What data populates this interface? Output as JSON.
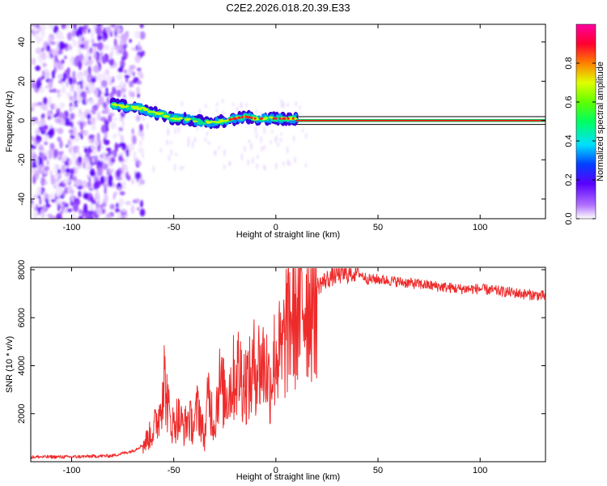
{
  "title": "C2E2.2026.018.20.39.E33",
  "chart_data": [
    {
      "type": "heatmap",
      "name": "spectrogram",
      "xlabel": "Height of straight line (km)",
      "ylabel": "Frequency (Hz)",
      "xlim": [
        -120,
        132
      ],
      "ylim": [
        -50,
        49
      ],
      "xticks": [
        -100,
        -50,
        0,
        50,
        100
      ],
      "yticks": [
        -40,
        -20,
        0,
        20,
        40
      ],
      "noise_region_x": [
        -120,
        -73
      ],
      "signal_ridge": {
        "x": [
          -80,
          -73,
          -65,
          -60,
          -55,
          -50,
          -45,
          -40,
          -35,
          -30,
          -25,
          -20,
          -15,
          -10,
          -5,
          0,
          5,
          10
        ],
        "freq": [
          8,
          7,
          6,
          4,
          3,
          1,
          1,
          0,
          -1,
          -1,
          0,
          1,
          2,
          1,
          1,
          1,
          1,
          1
        ]
      },
      "tone_line": {
        "from_x": 10,
        "to_x": 132,
        "freq": 0,
        "band_hz": [
          -2,
          2
        ]
      },
      "colorbar": {
        "label": "Normalized spectral amplitude",
        "range": [
          0.0,
          1.0
        ],
        "ticks": [
          0.0,
          0.2,
          0.4,
          0.6,
          0.8
        ]
      }
    },
    {
      "type": "line",
      "name": "snr",
      "xlabel": "Height of straight line (km)",
      "ylabel": "SNR (10 * v/v)",
      "xlim": [
        -120,
        132
      ],
      "ylim": [
        0,
        8100
      ],
      "xticks": [
        -100,
        -50,
        0,
        50,
        100
      ],
      "yticks": [
        2000,
        4000,
        6000,
        8000
      ],
      "color": "#ee2b2b",
      "series": [
        {
          "name": "SNR",
          "x": [
            -120,
            -100,
            -80,
            -70,
            -65,
            -60,
            -57,
            -55,
            -52,
            -50,
            -48,
            -45,
            -43,
            -40,
            -38,
            -35,
            -33,
            -30,
            -28,
            -25,
            -22,
            -20,
            -18,
            -15,
            -12,
            -10,
            -8,
            -5,
            -3,
            0,
            3,
            5,
            8,
            10,
            12,
            15,
            20,
            25,
            30,
            35,
            40,
            45,
            50,
            60,
            70,
            80,
            90,
            100,
            110,
            120,
            132
          ],
          "y": [
            200,
            200,
            250,
            450,
            700,
            1300,
            2000,
            3700,
            1800,
            1500,
            1900,
            1400,
            1800,
            1500,
            2400,
            900,
            2800,
            1500,
            3300,
            2700,
            3200,
            3600,
            3800,
            3300,
            3400,
            4200,
            4000,
            4100,
            3200,
            4600,
            4300,
            5600,
            6200,
            6200,
            6500,
            6900,
            7300,
            7600,
            7800,
            7800,
            7900,
            7600,
            7600,
            7500,
            7400,
            7300,
            7200,
            7200,
            7100,
            7000,
            6900
          ]
        }
      ]
    }
  ]
}
